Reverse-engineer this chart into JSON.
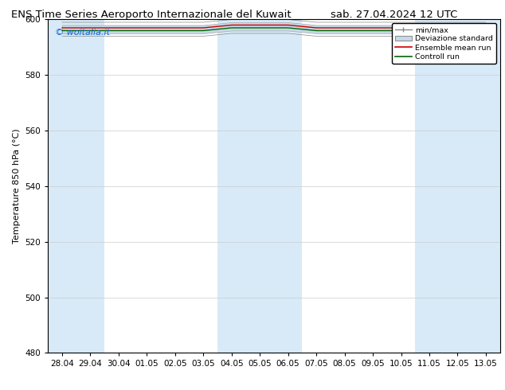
{
  "title_left": "ENS Time Series Aeroporto Internazionale del Kuwait",
  "title_right": "sab. 27.04.2024 12 UTC",
  "ylabel": "Temperature 850 hPa (°C)",
  "ylim": [
    480,
    600
  ],
  "yticks": [
    480,
    500,
    520,
    540,
    560,
    580,
    600
  ],
  "x_labels": [
    "28.04",
    "29.04",
    "30.04",
    "01.05",
    "02.05",
    "03.05",
    "04.05",
    "05.05",
    "06.05",
    "07.05",
    "08.05",
    "09.05",
    "10.05",
    "11.05",
    "12.05",
    "13.05"
  ],
  "watermark": "© woitalia.it",
  "watermark_color": "#1166cc",
  "bg_color": "#ffffff",
  "plot_bg_color": "#ffffff",
  "shaded_band_color": "#d8eaf8",
  "shaded_bands_x": [
    0,
    1,
    6,
    7,
    8,
    13,
    14,
    15
  ],
  "legend_labels": [
    "min/max",
    "Deviazione standard",
    "Ensemble mean run",
    "Controll run"
  ],
  "legend_colors": [
    "#999999",
    "#c5d8e8",
    "#cc0000",
    "#006600"
  ],
  "data_x": [
    0,
    1,
    2,
    3,
    4,
    5,
    6,
    7,
    8,
    9,
    10,
    11,
    12,
    13,
    14,
    15
  ],
  "data_mean_y": [
    597,
    597,
    597,
    597,
    597,
    597,
    598,
    598,
    598,
    597,
    597,
    597,
    597,
    597,
    597,
    597
  ],
  "data_ctrl_y": [
    596,
    596,
    596,
    596,
    596,
    596,
    597,
    597,
    597,
    596,
    596,
    596,
    596,
    596,
    596,
    596
  ],
  "data_std_top": [
    598,
    598,
    598,
    598,
    598,
    598,
    599,
    599,
    599,
    598,
    598,
    598,
    598,
    598,
    598,
    598
  ],
  "data_std_bot": [
    595,
    595,
    595,
    595,
    595,
    595,
    596,
    596,
    596,
    595,
    595,
    595,
    595,
    595,
    595,
    595
  ],
  "data_minmax_top": [
    599,
    599,
    599,
    599,
    599,
    599,
    600,
    600,
    600,
    599,
    599,
    599,
    599,
    599,
    599,
    599
  ],
  "data_minmax_bot": [
    594,
    594,
    594,
    594,
    594,
    594,
    595,
    595,
    595,
    594,
    594,
    594,
    594,
    594,
    594,
    594
  ],
  "title_fontsize": 9.5,
  "axis_fontsize": 8,
  "tick_fontsize": 7.5
}
